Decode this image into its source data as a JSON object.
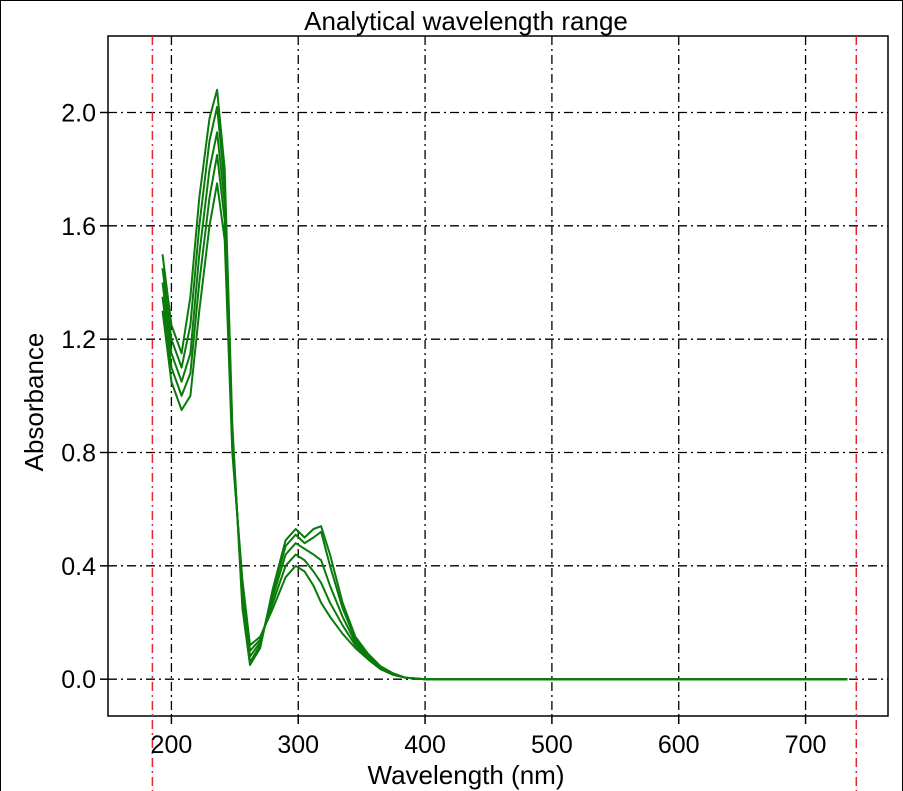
{
  "chart_data": {
    "type": "line",
    "title": "Analytical wavelength range",
    "xlabel": "Wavelength (nm)",
    "ylabel": "Absorbance",
    "xlim": [
      150,
      765
    ],
    "ylim": [
      -0.13,
      2.27
    ],
    "x_ticks": [
      200,
      300,
      400,
      500,
      600,
      700
    ],
    "y_ticks": [
      0.0,
      0.4,
      0.8,
      1.2,
      1.6,
      2.0
    ],
    "x_tick_labels": [
      "200",
      "300",
      "400",
      "500",
      "600",
      "700"
    ],
    "y_tick_labels": [
      "0.0",
      "0.4",
      "0.8",
      "1.2",
      "1.6",
      "2.0"
    ],
    "grid": true,
    "legend": "none",
    "range_markers": [
      185,
      740
    ],
    "colors": {
      "series": "#0a7a0a",
      "range_marker": "#e8262a",
      "grid": "#000000"
    },
    "series": [
      {
        "x": [
          193,
          200,
          208,
          215,
          222,
          230,
          236,
          242,
          248,
          256,
          262,
          270,
          280,
          290,
          298,
          305,
          312,
          318,
          325,
          335,
          345,
          355,
          365,
          375,
          385,
          400,
          500,
          600,
          700,
          733
        ],
        "y": [
          1.3,
          1.05,
          0.95,
          1.0,
          1.3,
          1.6,
          1.75,
          1.55,
          0.8,
          0.35,
          0.12,
          0.15,
          0.25,
          0.36,
          0.4,
          0.38,
          0.33,
          0.27,
          0.22,
          0.16,
          0.11,
          0.07,
          0.035,
          0.015,
          0.005,
          0.0,
          0.0,
          0.0,
          0.0,
          0.0
        ]
      },
      {
        "x": [
          193,
          200,
          208,
          215,
          222,
          230,
          236,
          242,
          248,
          256,
          262,
          270,
          280,
          290,
          298,
          305,
          312,
          318,
          325,
          335,
          345,
          355,
          365,
          375,
          385,
          400,
          500,
          600,
          700,
          733
        ],
        "y": [
          1.35,
          1.1,
          1.0,
          1.08,
          1.4,
          1.7,
          1.85,
          1.62,
          0.82,
          0.33,
          0.1,
          0.14,
          0.27,
          0.4,
          0.44,
          0.42,
          0.38,
          0.34,
          0.27,
          0.19,
          0.12,
          0.075,
          0.038,
          0.016,
          0.005,
          0.0,
          0.0,
          0.0,
          0.0,
          0.0
        ]
      },
      {
        "x": [
          193,
          200,
          208,
          215,
          222,
          230,
          236,
          242,
          248,
          256,
          262,
          270,
          280,
          290,
          298,
          305,
          312,
          318,
          325,
          335,
          345,
          355,
          365,
          375,
          385,
          400,
          500,
          600,
          700,
          733
        ],
        "y": [
          1.4,
          1.15,
          1.05,
          1.15,
          1.5,
          1.8,
          1.93,
          1.68,
          0.85,
          0.3,
          0.08,
          0.13,
          0.29,
          0.44,
          0.48,
          0.46,
          0.44,
          0.42,
          0.33,
          0.22,
          0.13,
          0.08,
          0.04,
          0.017,
          0.005,
          0.0,
          0.0,
          0.0,
          0.0,
          0.0
        ]
      },
      {
        "x": [
          193,
          200,
          208,
          215,
          222,
          230,
          236,
          242,
          248,
          256,
          262,
          270,
          280,
          290,
          298,
          305,
          312,
          318,
          325,
          335,
          345,
          355,
          365,
          375,
          385,
          400,
          500,
          600,
          700,
          733
        ],
        "y": [
          1.45,
          1.2,
          1.1,
          1.25,
          1.6,
          1.9,
          2.02,
          1.74,
          0.88,
          0.27,
          0.06,
          0.12,
          0.31,
          0.47,
          0.51,
          0.48,
          0.5,
          0.52,
          0.4,
          0.25,
          0.14,
          0.085,
          0.042,
          0.018,
          0.005,
          0.0,
          0.0,
          0.0,
          0.0,
          0.0
        ]
      },
      {
        "x": [
          193,
          200,
          208,
          215,
          222,
          230,
          236,
          242,
          248,
          256,
          262,
          270,
          280,
          290,
          298,
          305,
          312,
          318,
          325,
          335,
          345,
          355,
          365,
          375,
          385,
          400,
          500,
          600,
          700,
          733
        ],
        "y": [
          1.5,
          1.25,
          1.15,
          1.35,
          1.7,
          1.98,
          2.08,
          1.8,
          0.9,
          0.25,
          0.05,
          0.11,
          0.32,
          0.49,
          0.53,
          0.5,
          0.53,
          0.54,
          0.44,
          0.27,
          0.15,
          0.09,
          0.045,
          0.02,
          0.005,
          0.0,
          0.0,
          0.0,
          0.0,
          0.0
        ]
      }
    ]
  }
}
